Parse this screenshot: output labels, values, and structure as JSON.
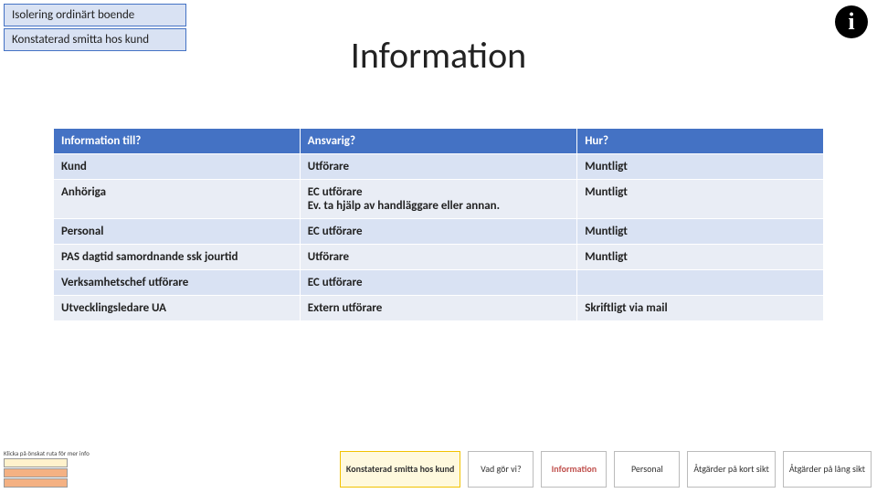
{
  "tags": {
    "tag1": "Isolering ordinärt boende",
    "tag2": "Konstaterad smitta hos kund"
  },
  "title": "Information",
  "info_icon_glyph": "i",
  "table": {
    "headers": [
      "Information till?",
      "Ansvarig?",
      "Hur?"
    ],
    "rows": [
      {
        "c1": "Kund",
        "c2": "Utförare",
        "c3": "Muntligt"
      },
      {
        "c1": "Anhöriga",
        "c2": "EC utförare\nEv. ta hjälp av handläggare eller annan.",
        "c3": "Muntligt"
      },
      {
        "c1": "Personal",
        "c2": "EC utförare",
        "c3": "Muntligt"
      },
      {
        "c1": "PAS dagtid samordnande ssk jourtid",
        "c2": "Utförare",
        "c3": "Muntligt"
      },
      {
        "c1": "Verksamhetschef utförare",
        "c2": "EC utförare",
        "c3": ""
      },
      {
        "c1": "Utvecklingsledare UA",
        "c2": "Extern utförare",
        "c3": "Skriftligt via mail"
      }
    ]
  },
  "footer": {
    "b1": "Konstaterad smitta hos kund",
    "b2": "Vad gör vi?",
    "b3": "Information",
    "b4": "Personal",
    "b5": "Åtgärder på kort sikt",
    "b6": "Åtgärder på lång sikt"
  },
  "legend": {
    "title": "Klicka på önskat ruta för mer info",
    "l1_color": "#fff2cc",
    "l2_color": "#f4b183",
    "l3_color": "#f4b183"
  },
  "colors": {
    "header_bg": "#4472c4",
    "row_odd": "#d9e2f3",
    "row_even": "#e9edf5"
  }
}
